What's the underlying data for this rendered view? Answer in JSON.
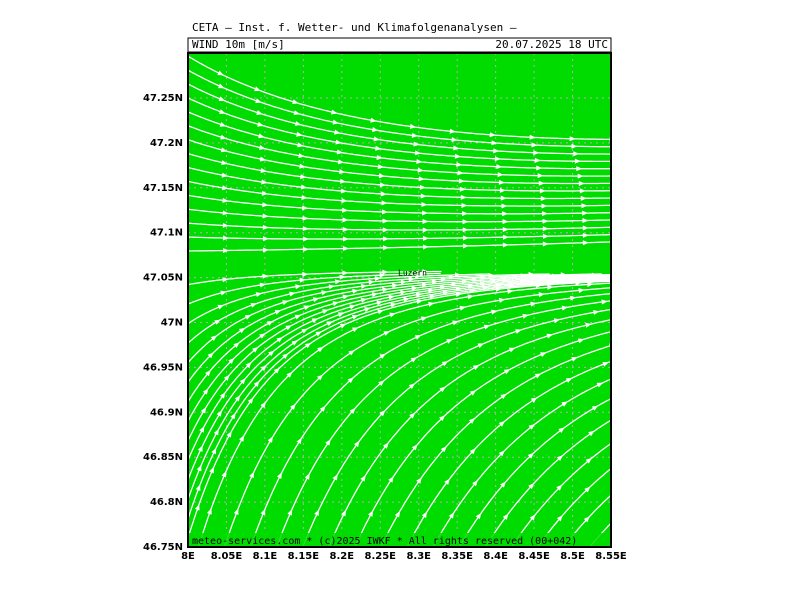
{
  "header": {
    "title": "CETA — Inst. f. Wetter- und Klimafolgenanalysen —",
    "variable": "WIND 10m [m/s]",
    "datetime": "20.07.2025 18 UTC"
  },
  "map": {
    "x_labels": [
      "8E",
      "8.05E",
      "8.1E",
      "8.15E",
      "8.2E",
      "8.25E",
      "8.3E",
      "8.35E",
      "8.4E",
      "8.45E",
      "8.5E",
      "8.55E"
    ],
    "y_labels": [
      "46.75N",
      "46.8N",
      "46.85N",
      "46.9N",
      "46.95N",
      "47N",
      "47.05N",
      "47.1N",
      "47.15N",
      "47.2N",
      "47.25N"
    ],
    "place": "Luzern"
  },
  "footer": "meteo-services.com * (c)2025 IWKF * All rights reserved (00+042)"
}
